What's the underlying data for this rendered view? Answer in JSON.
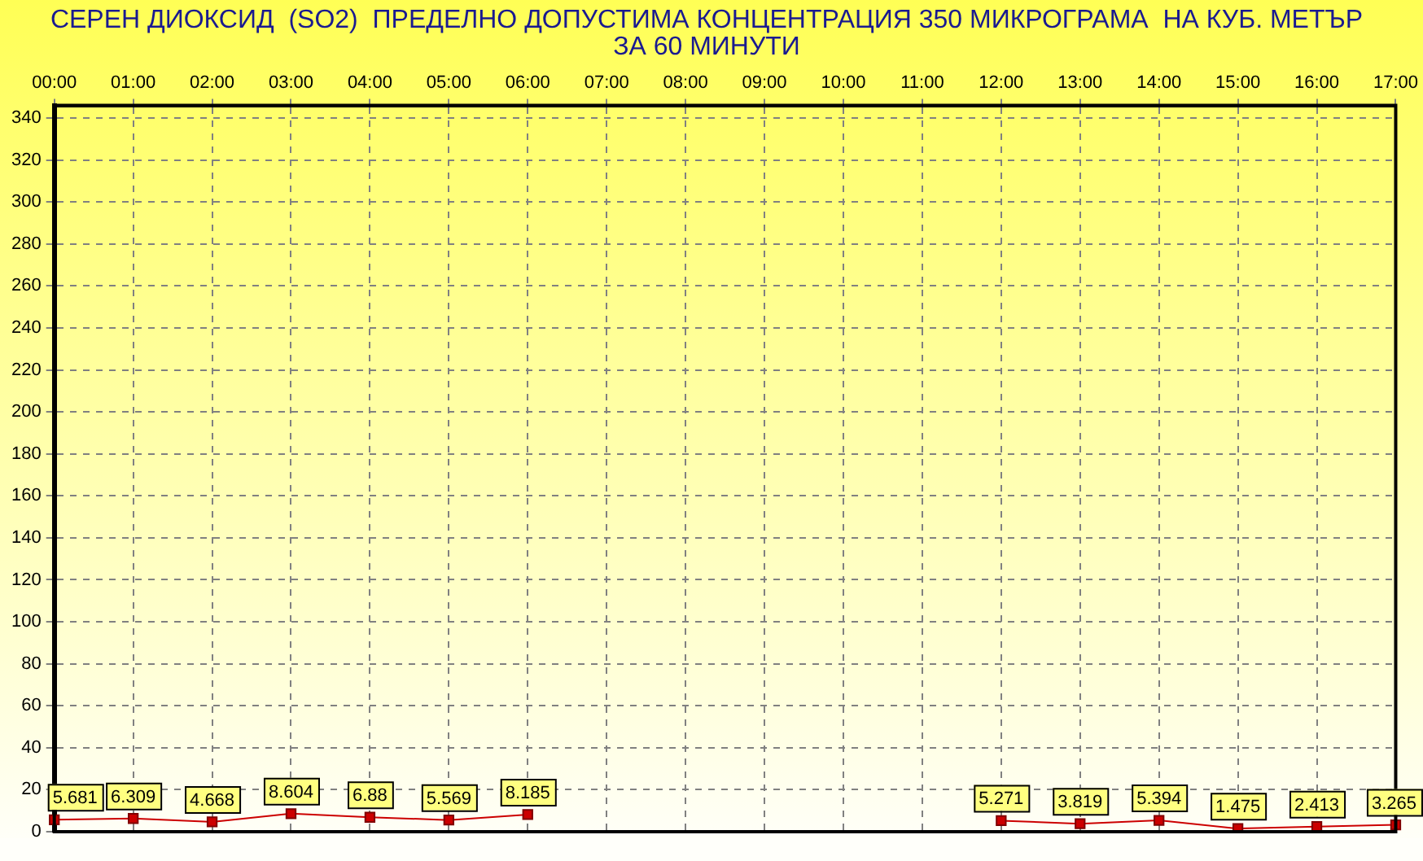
{
  "chart_data": {
    "type": "line",
    "title": "СЕРЕН ДИОКСИД  (SO2)  ПРЕДЕЛНО ДОПУСТИМА КОНЦЕНТРАЦИЯ 350 МИКРОГРАМА  НА КУБ. МЕТЪР\nЗА 60 МИНУТИ",
    "categories": [
      "00:00",
      "01:00",
      "02:00",
      "03:00",
      "04:00",
      "05:00",
      "06:00",
      "07:00",
      "08:00",
      "09:00",
      "10:00",
      "11:00",
      "12:00",
      "13:00",
      "14:00",
      "15:00",
      "16:00",
      "17:00"
    ],
    "series": [
      {
        "color": "#cc0000",
        "values": [
          5.681,
          6.309,
          4.668,
          8.604,
          6.88,
          5.569,
          8.185,
          null,
          null,
          null,
          null,
          null,
          5.271,
          3.819,
          5.394,
          1.475,
          2.413,
          3.265
        ]
      }
    ],
    "ylim": [
      0,
      346
    ],
    "yticks": [
      0,
      20,
      40,
      60,
      80,
      100,
      120,
      140,
      160,
      180,
      200,
      220,
      240,
      260,
      280,
      300,
      320,
      340
    ],
    "grid": true,
    "legend": false,
    "marker": "square",
    "line_style": "solid",
    "data_labels": true
  }
}
